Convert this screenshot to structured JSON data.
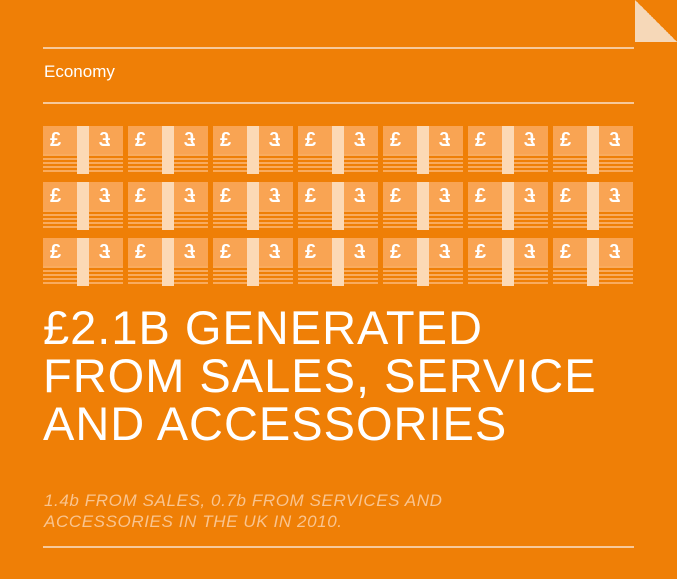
{
  "section": {
    "label": "Economy"
  },
  "headline": {
    "lines": [
      "£2.1b GENERATED",
      "FROM SALES, SERVICE",
      "AND ACCESSORIES"
    ]
  },
  "subtext": {
    "lines": [
      "1.4b FROM SALES, 0.7b FROM SERVICES AND",
      "ACCESSORIES IN THE UK IN 2010."
    ]
  },
  "notes": {
    "count": 21,
    "symbol_left": "£",
    "symbol_right": "£",
    "icon": "banknote-icon"
  },
  "colors": {
    "background": "#ef7f06",
    "rule": "#f7c99a",
    "note": "#f9a453",
    "subtext": "#f9c48f"
  }
}
